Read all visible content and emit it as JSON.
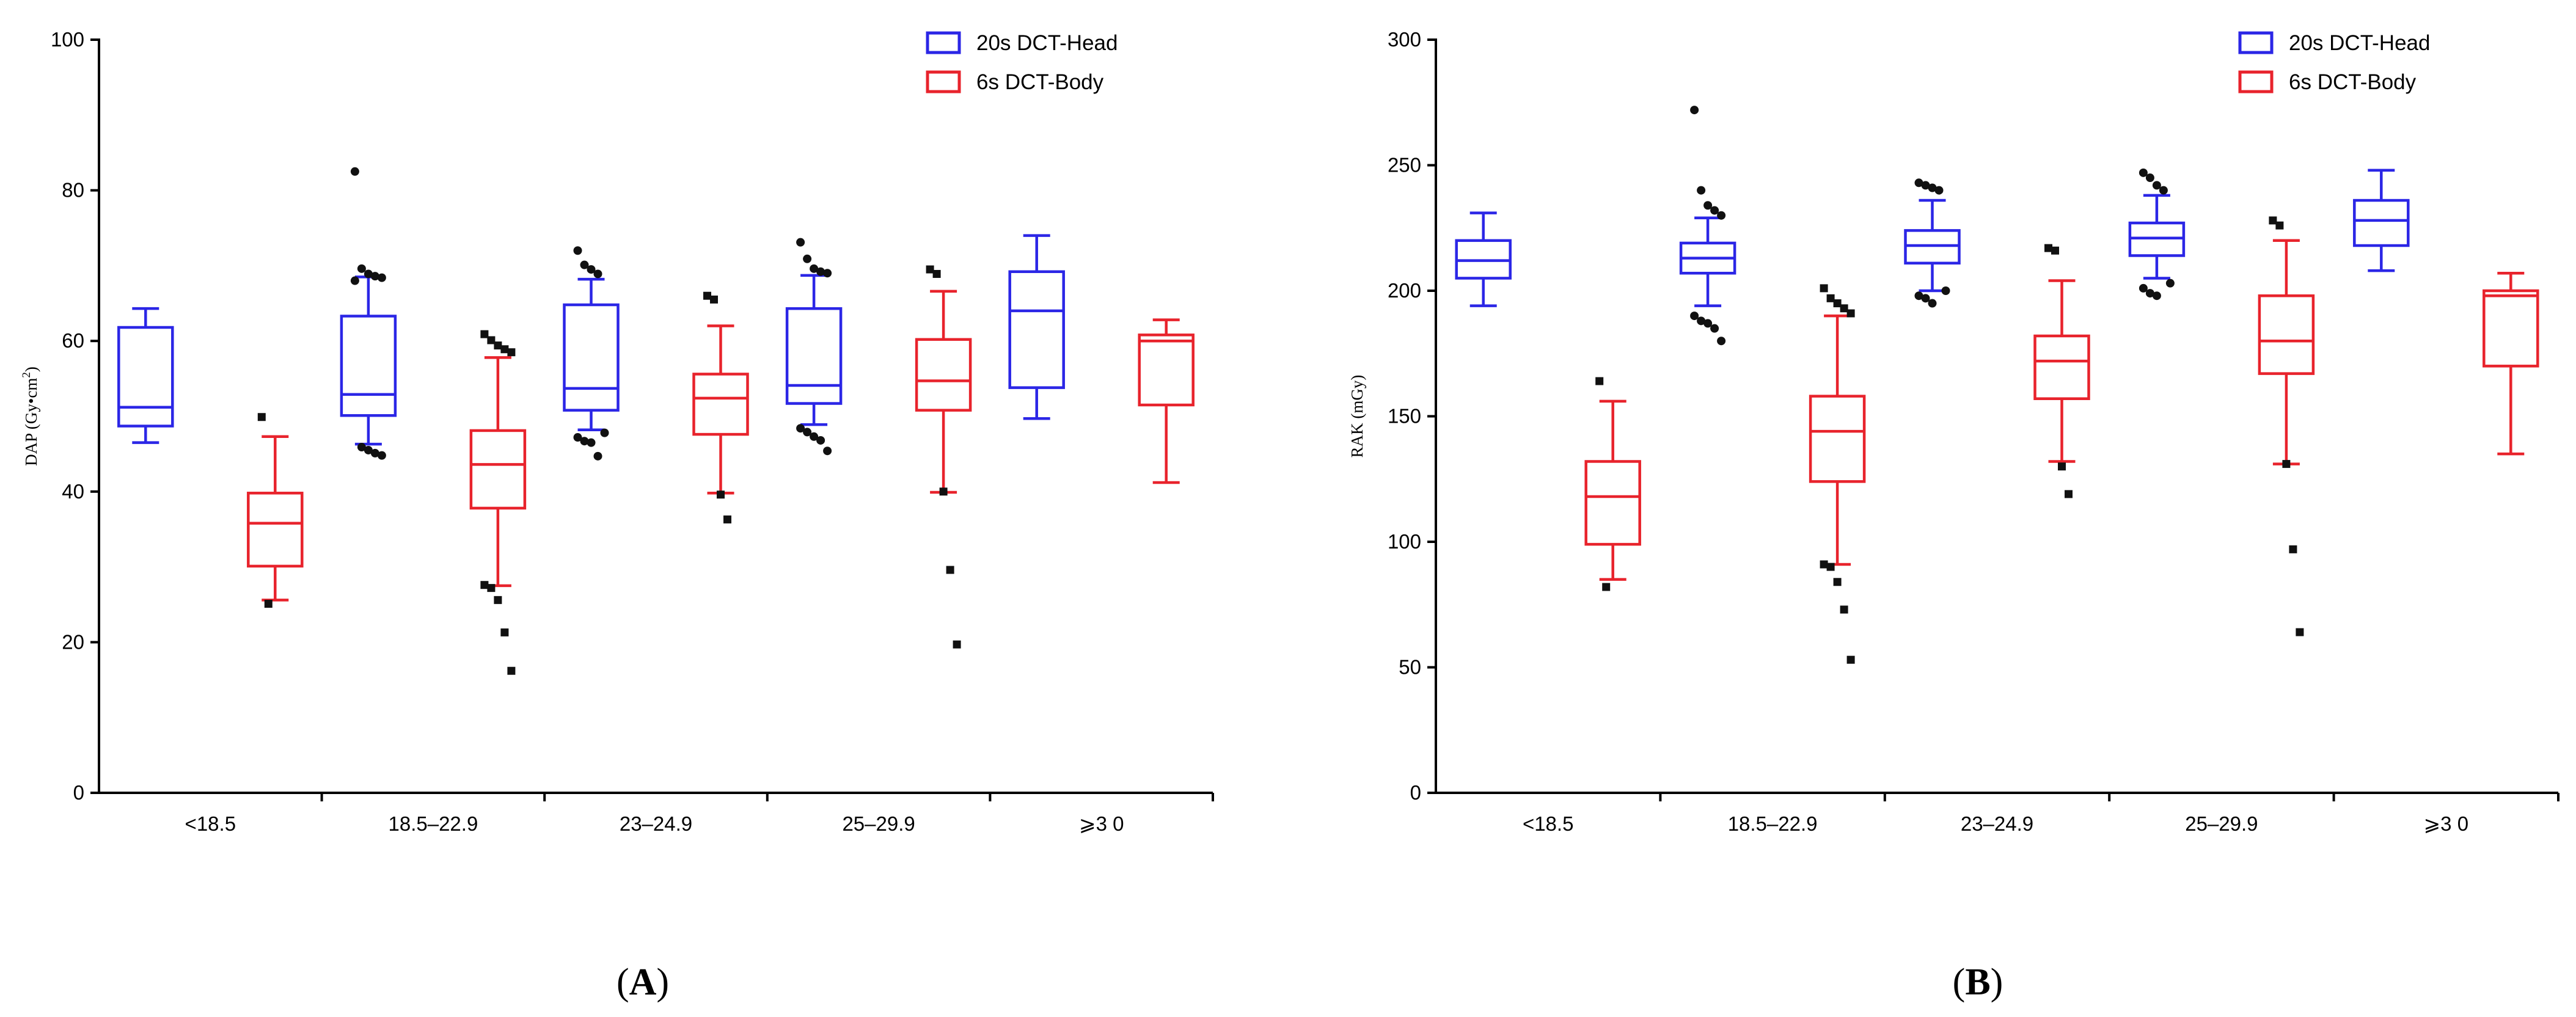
{
  "chart_data": [
    {
      "type": "box",
      "panel_label": "A",
      "ylabel_text": "DAP (Gy•cm",
      "ylabel_sup": "2",
      "ylabel_close": ")",
      "ylim": [
        0,
        100
      ],
      "yticks": [
        0,
        20,
        40,
        60,
        80,
        100
      ],
      "categories": [
        "<18.5",
        "18.5–22.9",
        "23–24.9",
        "25–29.9",
        "⩾3 0"
      ],
      "legend_position": "top-right",
      "series": [
        {
          "name": "20s DCT-Head",
          "color": "#2b26e6",
          "marker": "circle",
          "boxes": [
            {
              "min": 46.5,
              "q1": 48.7,
              "median": 51.2,
              "q3": 61.8,
              "max": 64.3,
              "outliers": []
            },
            {
              "min": 46.3,
              "q1": 50.1,
              "median": 52.9,
              "q3": 63.3,
              "max": 68.5,
              "outliers": [
                82.5,
                69.6,
                68.9,
                68.6,
                68.4,
                68.0,
                45.9,
                45.5,
                45.1,
                44.8
              ]
            },
            {
              "min": 48.2,
              "q1": 50.8,
              "median": 53.7,
              "q3": 64.8,
              "max": 68.2,
              "outliers": [
                72.0,
                70.1,
                69.5,
                68.9,
                47.8,
                47.2,
                46.7,
                46.5,
                44.7
              ]
            },
            {
              "min": 48.9,
              "q1": 51.7,
              "median": 54.1,
              "q3": 64.3,
              "max": 68.7,
              "outliers": [
                73.1,
                70.9,
                69.6,
                69.2,
                69.0,
                48.4,
                47.9,
                47.3,
                46.8,
                45.4
              ]
            },
            {
              "min": 49.7,
              "q1": 53.8,
              "median": 64.0,
              "q3": 69.2,
              "max": 74.0,
              "outliers": []
            }
          ]
        },
        {
          "name": "6s DCT-Body",
          "color": "#e8232c",
          "marker": "square",
          "boxes": [
            {
              "min": 25.6,
              "q1": 30.1,
              "median": 35.8,
              "q3": 39.8,
              "max": 47.3,
              "outliers": [
                49.9,
                25.1
              ]
            },
            {
              "min": 27.5,
              "q1": 37.8,
              "median": 43.6,
              "q3": 48.1,
              "max": 57.8,
              "outliers": [
                60.9,
                60.1,
                59.4,
                58.9,
                58.5,
                27.6,
                27.2,
                25.6,
                21.3,
                16.2
              ]
            },
            {
              "min": 39.8,
              "q1": 47.6,
              "median": 52.4,
              "q3": 55.6,
              "max": 62.0,
              "outliers": [
                66.0,
                65.5,
                39.6,
                36.3
              ]
            },
            {
              "min": 39.9,
              "q1": 50.8,
              "median": 54.7,
              "q3": 60.2,
              "max": 66.6,
              "outliers": [
                69.5,
                68.9,
                40.0,
                29.6,
                19.7
              ]
            },
            {
              "min": 41.2,
              "q1": 51.5,
              "median": 60.0,
              "q3": 60.8,
              "max": 62.8,
              "outliers": []
            }
          ]
        }
      ]
    },
    {
      "type": "box",
      "panel_label": "B",
      "ylabel_text": "RAK (mGy)",
      "ylim": [
        0,
        300
      ],
      "yticks": [
        0,
        50,
        100,
        150,
        200,
        250,
        300
      ],
      "categories": [
        "<18.5",
        "18.5–22.9",
        "23–24.9",
        "25–29.9",
        "⩾3 0"
      ],
      "legend_position": "top-right",
      "series": [
        {
          "name": "20s DCT-Head",
          "color": "#2b26e6",
          "marker": "circle",
          "boxes": [
            {
              "min": 194,
              "q1": 205,
              "median": 212,
              "q3": 220,
              "max": 231,
              "outliers": []
            },
            {
              "min": 194,
              "q1": 207,
              "median": 213,
              "q3": 219,
              "max": 229,
              "outliers": [
                272,
                240,
                234,
                232,
                230,
                190,
                188,
                187,
                185,
                180
              ]
            },
            {
              "min": 200,
              "q1": 211,
              "median": 218,
              "q3": 224,
              "max": 236,
              "outliers": [
                243,
                242,
                241,
                240,
                200,
                198,
                197,
                195
              ]
            },
            {
              "min": 205,
              "q1": 214,
              "median": 221,
              "q3": 227,
              "max": 238,
              "outliers": [
                247,
                245,
                242,
                240,
                203,
                201,
                199,
                198
              ]
            },
            {
              "min": 208,
              "q1": 218,
              "median": 228,
              "q3": 236,
              "max": 248,
              "outliers": []
            }
          ]
        },
        {
          "name": "6s DCT-Body",
          "color": "#e8232c",
          "marker": "square",
          "boxes": [
            {
              "min": 85,
              "q1": 99,
              "median": 118,
              "q3": 132,
              "max": 156,
              "outliers": [
                164,
                82
              ]
            },
            {
              "min": 91,
              "q1": 124,
              "median": 144,
              "q3": 158,
              "max": 190,
              "outliers": [
                201,
                197,
                195,
                193,
                191,
                91,
                90,
                84,
                73,
                53
              ]
            },
            {
              "min": 132,
              "q1": 157,
              "median": 172,
              "q3": 182,
              "max": 204,
              "outliers": [
                217,
                216,
                130,
                119
              ]
            },
            {
              "min": 131,
              "q1": 167,
              "median": 180,
              "q3": 198,
              "max": 220,
              "outliers": [
                228,
                226,
                131,
                97,
                64
              ]
            },
            {
              "min": 135,
              "q1": 170,
              "median": 198,
              "q3": 200,
              "max": 207,
              "outliers": []
            }
          ]
        }
      ]
    }
  ]
}
